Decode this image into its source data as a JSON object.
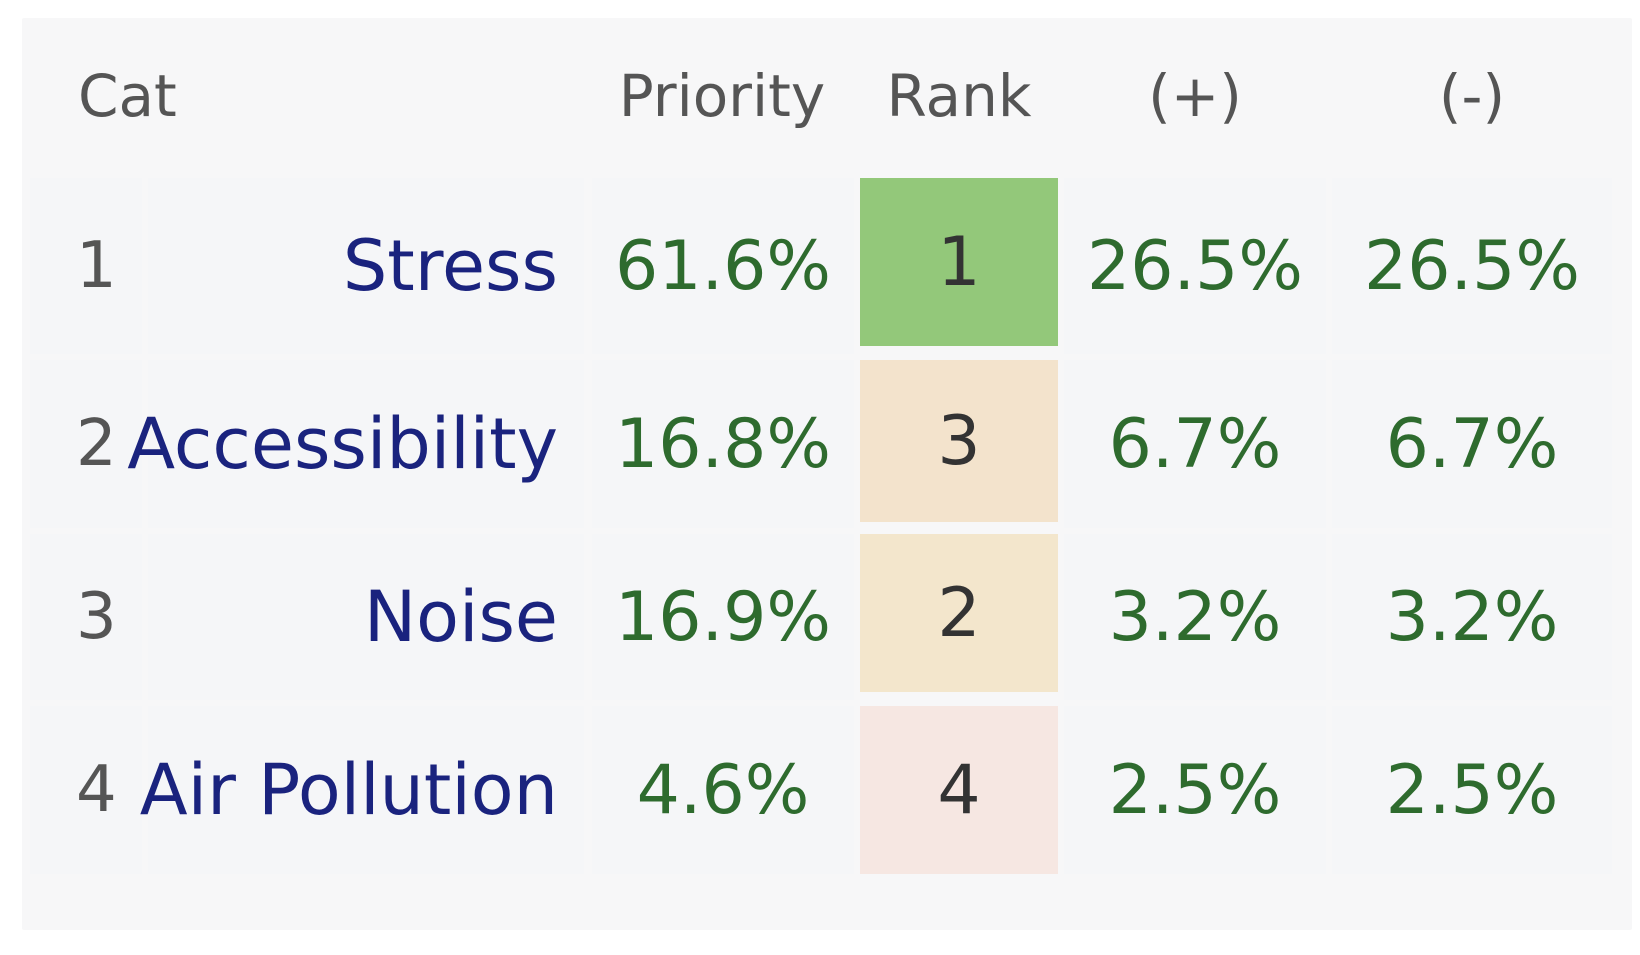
{
  "table": {
    "headers": {
      "cat": "Cat",
      "priority": "Priority",
      "rank": "Rank",
      "plus": "(+)",
      "minus": "(-)"
    },
    "rows": [
      {
        "num": "1",
        "name": "Stress",
        "priority": "61.6%",
        "rank": "1",
        "plus": "26.5%",
        "minus": "26.5%"
      },
      {
        "num": "2",
        "name": "Accessibility",
        "priority": "16.8%",
        "rank": "3",
        "plus": "6.7%",
        "minus": "6.7%"
      },
      {
        "num": "3",
        "name": "Noise",
        "priority": "16.9%",
        "rank": "2",
        "plus": "3.2%",
        "minus": "3.2%"
      },
      {
        "num": "4",
        "name": "Air Pollution",
        "priority": "4.6%",
        "rank": "4",
        "plus": "2.5%",
        "minus": "2.5%"
      }
    ],
    "rank_colors": {
      "rank_1": "#93c87a",
      "rank_2": "#f3e6cc",
      "rank_3": "#f3e3cc",
      "rank_4": "#f6e7e2"
    },
    "text_colors": {
      "name": "#1a237e",
      "percent": "#2e6b2e",
      "muted": "#555555"
    }
  }
}
